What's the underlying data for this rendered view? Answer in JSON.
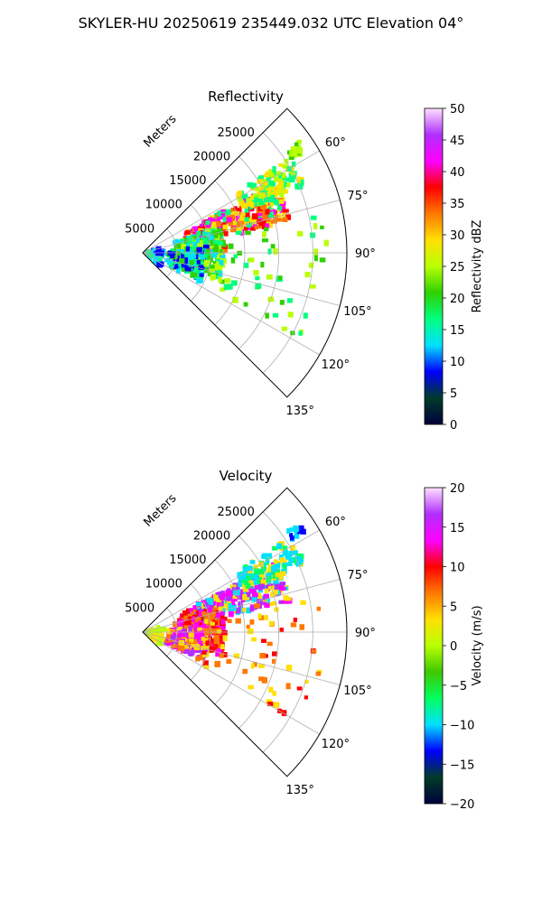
{
  "figure": {
    "suptitle": "SKYLER-HU  20250619  235449.032 UTC Elevation 04°"
  },
  "chart_data": [
    {
      "type": "heatmap",
      "projection": "polar-sector",
      "title": "Reflectivity",
      "range_label": "Meters",
      "range_ticks": [
        5000,
        10000,
        15000,
        20000,
        25000
      ],
      "rmax": 30000,
      "theta_range_deg": [
        45,
        135
      ],
      "theta_ticks": [
        "60°",
        "75°",
        "90°",
        "105°",
        "120°",
        "135°"
      ],
      "grid": true,
      "colorbar": {
        "label": "Reflectivity dBZ",
        "vmin": 0,
        "vmax": 50,
        "ticks": [
          "0",
          "5",
          "10",
          "15",
          "20",
          "25",
          "30",
          "35",
          "40",
          "45",
          "50"
        ],
        "stops": [
          "#00003c",
          "#003c28",
          "#0000ff",
          "#00e0ff",
          "#00ff80",
          "#30d000",
          "#b8ff00",
          "#ffe000",
          "#ff7800",
          "#ff0000",
          "#ff00ff",
          "#b030ff",
          "#ffe0ff"
        ]
      }
    },
    {
      "type": "heatmap",
      "projection": "polar-sector",
      "title": "Velocity",
      "range_label": "Meters",
      "range_ticks": [
        5000,
        10000,
        15000,
        20000,
        25000
      ],
      "rmax": 30000,
      "theta_range_deg": [
        45,
        135
      ],
      "theta_ticks": [
        "60°",
        "75°",
        "90°",
        "105°",
        "120°",
        "135°"
      ],
      "grid": true,
      "colorbar": {
        "label": "Velocity (m/s)",
        "vmin": -20,
        "vmax": 20,
        "ticks": [
          "−20",
          "−15",
          "−10",
          "−5",
          "0",
          "5",
          "10",
          "15",
          "20"
        ],
        "stops": [
          "#00003c",
          "#003c28",
          "#0000ff",
          "#00e0ff",
          "#00ff60",
          "#40c800",
          "#b8ff00",
          "#ffe000",
          "#ff7800",
          "#ff0000",
          "#ff00ff",
          "#b030ff",
          "#ffe0ff"
        ]
      }
    }
  ]
}
